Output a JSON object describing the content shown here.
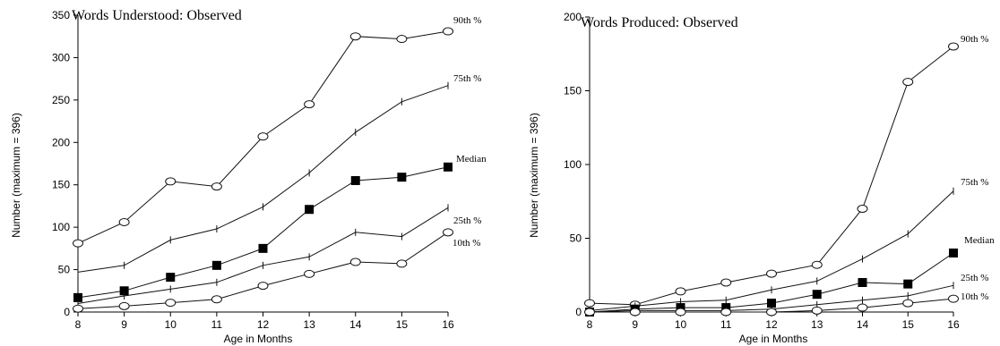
{
  "chart_data": [
    {
      "type": "line",
      "title": "Words Understood: Observed",
      "xlabel": "Age in Months",
      "ylabel": "Number (maximum = 396)",
      "x": [
        8,
        9,
        10,
        11,
        12,
        13,
        14,
        15,
        16
      ],
      "xlim": [
        8,
        16
      ],
      "ylim": [
        0,
        350
      ],
      "yticks": [
        0,
        50,
        100,
        150,
        200,
        250,
        300,
        350
      ],
      "grid": false,
      "series": [
        {
          "name": "90th %",
          "marker": "circle",
          "values": [
            81,
            106,
            154,
            148,
            207,
            245,
            325,
            322,
            331
          ]
        },
        {
          "name": "75th %",
          "marker": "plus",
          "values": [
            47,
            55,
            85,
            98,
            124,
            164,
            212,
            248,
            267
          ]
        },
        {
          "name": "Median",
          "marker": "square",
          "values": [
            17,
            25,
            41,
            55,
            75,
            121,
            155,
            159,
            171
          ]
        },
        {
          "name": "25th %",
          "marker": "plus",
          "values": [
            10,
            19,
            27,
            35,
            55,
            65,
            94,
            89,
            123
          ]
        },
        {
          "name": "10th %",
          "marker": "circle",
          "values": [
            4,
            7,
            11,
            15,
            31,
            45,
            59,
            57,
            94
          ]
        }
      ]
    },
    {
      "type": "line",
      "title": "Words Produced: Observed",
      "xlabel": "Age in Months",
      "ylabel": "Number (maximum = 396)",
      "x": [
        8,
        9,
        10,
        11,
        12,
        13,
        14,
        15,
        16
      ],
      "xlim": [
        8,
        16
      ],
      "ylim": [
        0,
        200
      ],
      "yticks": [
        0,
        50,
        100,
        150,
        200
      ],
      "grid": false,
      "series": [
        {
          "name": "90th %",
          "marker": "circle",
          "values": [
            6,
            5,
            14,
            20,
            26,
            32,
            70,
            156,
            180
          ]
        },
        {
          "name": "75th %",
          "marker": "plus",
          "values": [
            1,
            4,
            7,
            8,
            15,
            21,
            36,
            53,
            82
          ]
        },
        {
          "name": "Median",
          "marker": "square",
          "values": [
            0,
            2,
            3,
            3,
            6,
            12,
            20,
            19,
            40
          ]
        },
        {
          "name": "25th %",
          "marker": "plus",
          "values": [
            0,
            1,
            1,
            1,
            2,
            5,
            8,
            11,
            18
          ]
        },
        {
          "name": "10th %",
          "marker": "circle",
          "values": [
            0,
            0,
            0,
            0,
            0,
            1,
            3,
            6,
            9
          ]
        }
      ]
    }
  ]
}
